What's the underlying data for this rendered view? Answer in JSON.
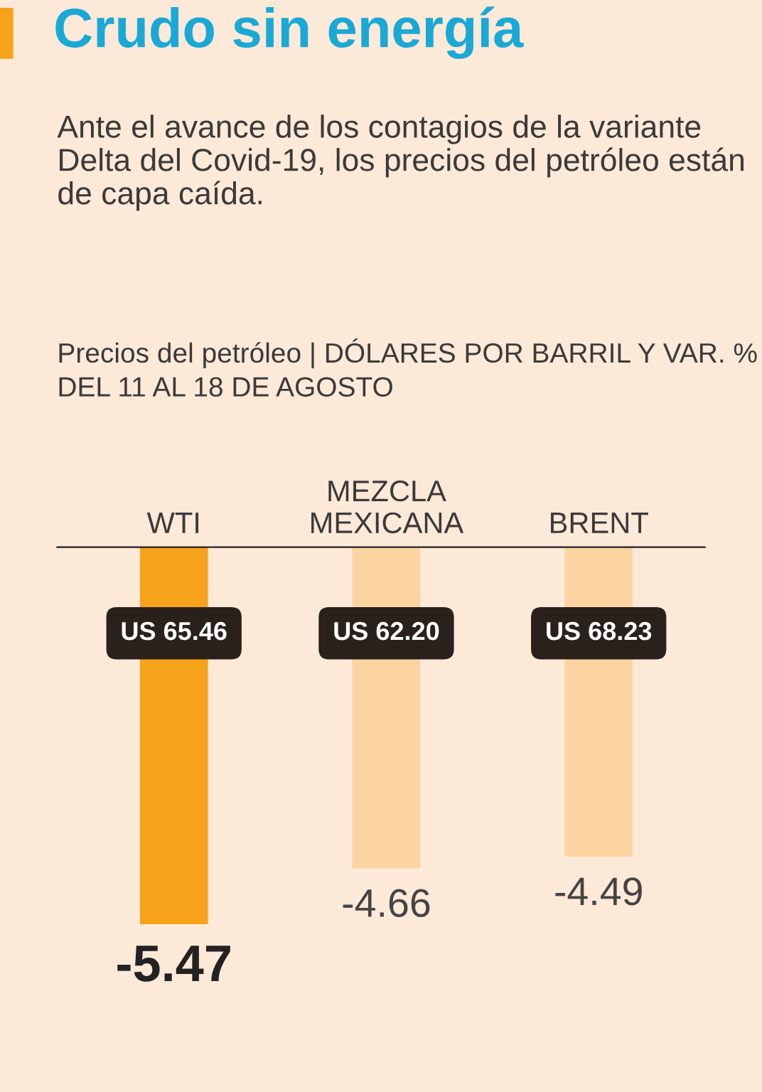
{
  "chart_data": {
    "type": "bar",
    "title": "Crudo sin energía",
    "subtitle": "Ante el avance de los contagios de la variante Delta del Covid-19, los precios del petróleo están de capa caída.",
    "annotations": [
      "Precios del petróleo | DÓLARES POR BARRIL Y VAR. % DEL 11 AL 18 DE AGOSTO",
      "US 65.46",
      "US 62.20",
      "US 68.23"
    ],
    "categories": [
      "WTI",
      "MEZCLA\nMEXICANA",
      "BRENT"
    ],
    "values": [
      -5.47,
      -4.66,
      -4.49
    ],
    "colors": [
      "#f7a21b",
      "#fcd4a2",
      "#fcd4a2"
    ],
    "data_labels": true,
    "grid": false,
    "legend": false
  }
}
